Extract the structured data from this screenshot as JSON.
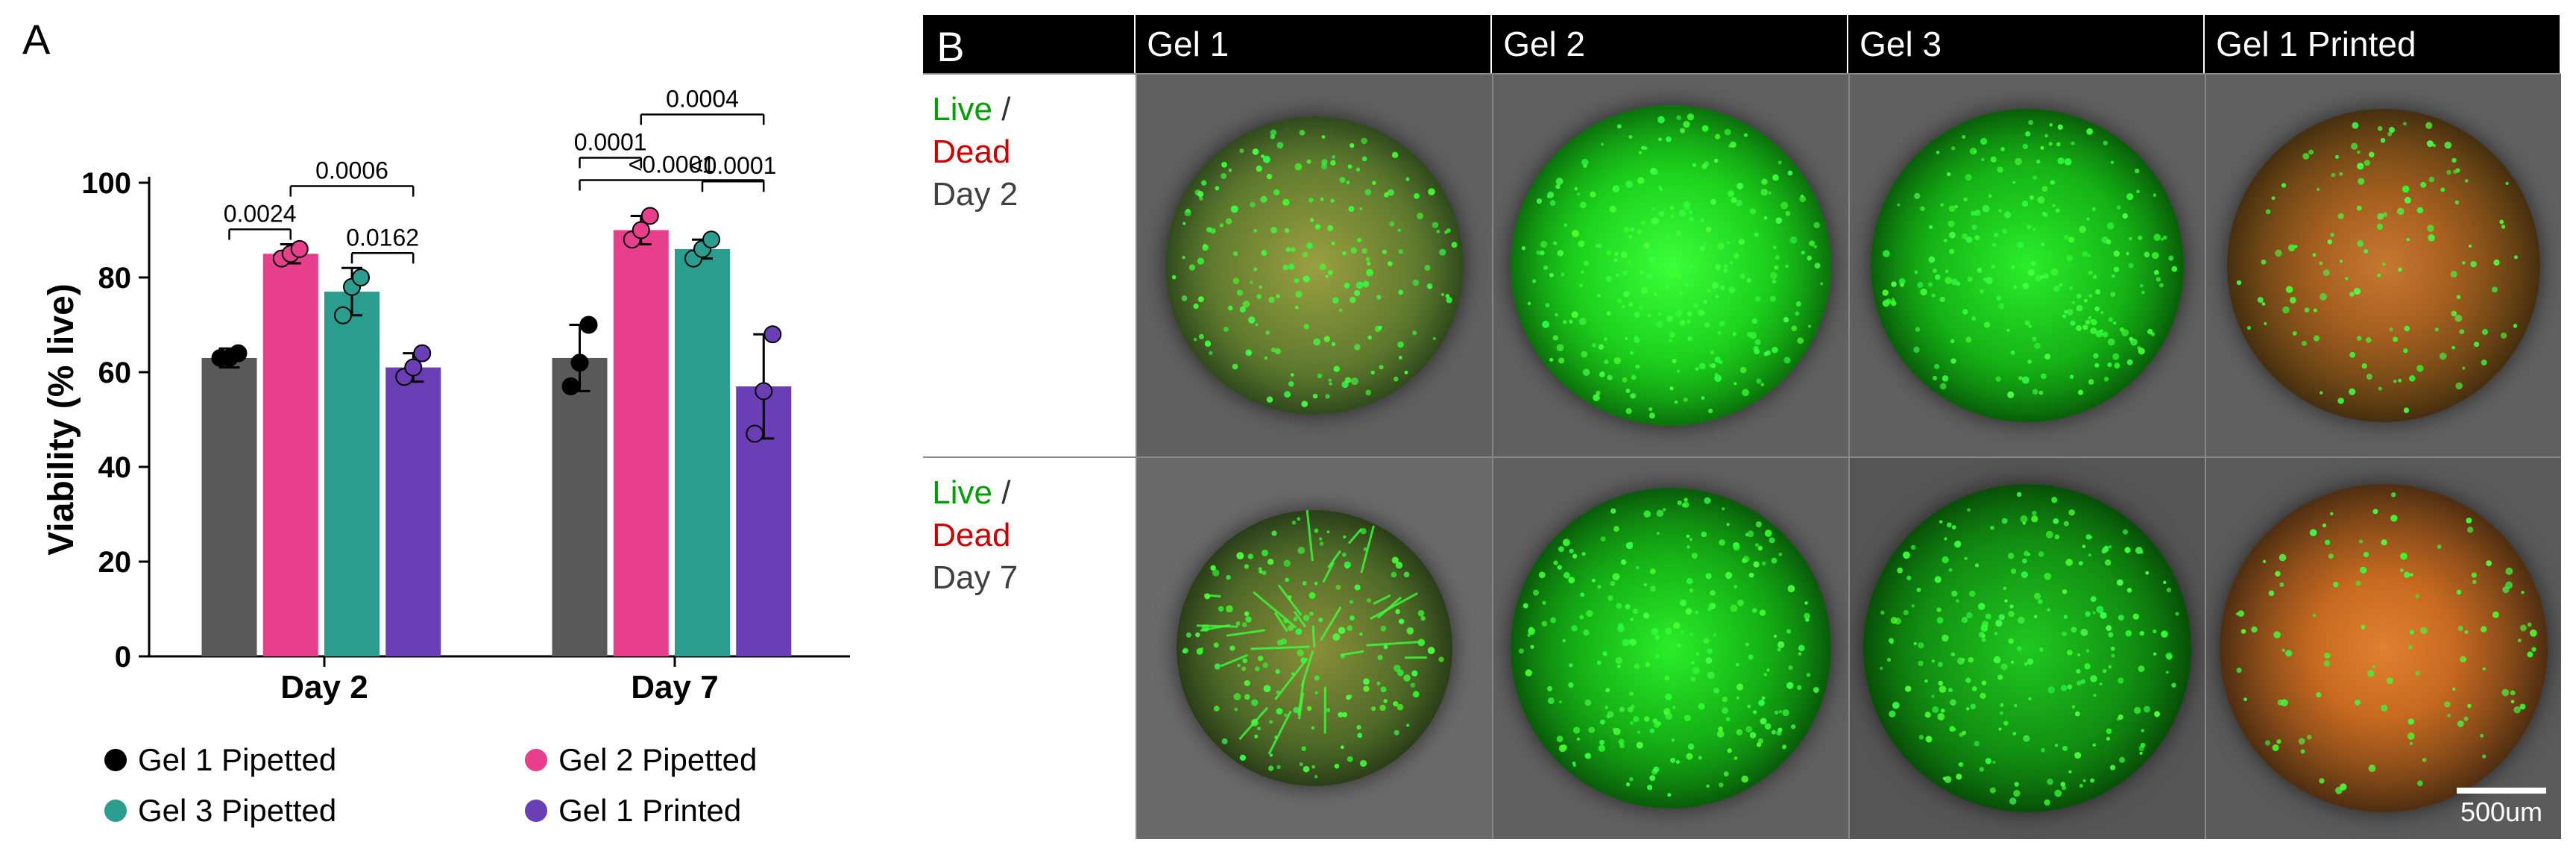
{
  "panel_a": {
    "label": "A",
    "chart": {
      "type": "bar",
      "ylabel": "Viability (% live)",
      "ylim": [
        0,
        100
      ],
      "yticks": [
        0,
        20,
        40,
        60,
        80,
        100
      ],
      "label_fontsize": 48,
      "tick_fontsize": 40,
      "annotation_fontsize": 32,
      "categories": [
        "Day 2",
        "Day 7"
      ],
      "series": [
        {
          "name": "Gel 1 Pipetted",
          "color": "#595959",
          "marker_color": "#000000"
        },
        {
          "name": "Gel 2 Pipetted",
          "color": "#e83f8c",
          "marker_color": "#e83f8c"
        },
        {
          "name": "Gel 3 Pipetted",
          "color": "#2a9d8f",
          "marker_color": "#2a9d8f"
        },
        {
          "name": "Gel 1 Printed",
          "color": "#6a3fb5",
          "marker_color": "#6a3fb5"
        }
      ],
      "data": {
        "Day 2": {
          "values": [
            63,
            85,
            77,
            61
          ],
          "errors": [
            2,
            2,
            5,
            3
          ],
          "points": [
            [
              63,
              63,
              64
            ],
            [
              84,
              85,
              86
            ],
            [
              72,
              78,
              80
            ],
            [
              59,
              61,
              64
            ]
          ]
        },
        "Day 7": {
          "values": [
            63,
            90,
            86,
            57
          ],
          "errors": [
            7,
            3,
            2,
            11
          ],
          "points": [
            [
              57,
              62,
              70
            ],
            [
              88,
              90,
              93
            ],
            [
              84,
              86,
              88
            ],
            [
              47,
              56,
              68
            ]
          ]
        }
      },
      "annotations": {
        "Day 2": [
          {
            "from": 0,
            "to": 1,
            "label": "0.0024",
            "level": 1
          },
          {
            "from": 2,
            "to": 3,
            "label": "0.0162",
            "level": 1
          },
          {
            "from": 1,
            "to": 3,
            "label": "0.0006",
            "level": 2
          }
        ],
        "Day 7": [
          {
            "from": 0,
            "to": 1,
            "label": "0.0001",
            "level": 2
          },
          {
            "from": 2,
            "to": 3,
            "label": "<0.0001",
            "level": 2
          },
          {
            "from": 1,
            "to": 3,
            "label": "0.0004",
            "level": 3
          },
          {
            "from": 0,
            "to": 3,
            "label": "<0.0001",
            "level": 4
          }
        ]
      },
      "bar_width": 0.8,
      "background_color": "#ffffff",
      "axis_color": "#000000"
    },
    "legend_items": [
      {
        "label": "Gel 1 Pipetted",
        "color": "#000000"
      },
      {
        "label": "Gel 2 Pipetted",
        "color": "#e83f8c"
      },
      {
        "label": "Gel 3 Pipetted",
        "color": "#2a9d8f"
      },
      {
        "label": "Gel 1 Printed",
        "color": "#6a3fb5"
      }
    ]
  },
  "panel_b": {
    "label": "B",
    "columns": [
      "Gel 1",
      "Gel 2",
      "Gel 3",
      "Gel 1 Printed"
    ],
    "rows": [
      {
        "live": "Live",
        "slash": " / ",
        "dead": "Dead",
        "day": "Day 2"
      },
      {
        "live": "Live",
        "slash": " / ",
        "dead": "Dead",
        "day": "Day 7"
      }
    ],
    "images": [
      [
        {
          "bg": "#606060",
          "fill": "radial-gradient(circle, #9aa040 0%, #5f7a2e 50%, #2e5020 80%)",
          "green_overlay": 0.8,
          "dots": 180,
          "size": 400
        },
        {
          "bg": "#606060",
          "fill": "radial-gradient(circle, #3aff3a 0%, #1ed41e 40%, #0a7a0a 80%)",
          "green_overlay": 0.95,
          "dots": 260,
          "size": 430
        },
        {
          "bg": "#606060",
          "fill": "radial-gradient(circle, #2aee2a 0%, #16b316 45%, #065506 85%)",
          "green_overlay": 0.9,
          "dots": 220,
          "size": 420
        },
        {
          "bg": "#606060",
          "fill": "radial-gradient(circle, #c77830 0%, #a86020 30%, #6a4515 60%, #3a2a10 90%)",
          "green_overlay": 0.35,
          "dots": 120,
          "size": 420
        }
      ],
      [
        {
          "bg": "#6a6a6a",
          "fill": "radial-gradient(circle, #8a9038 0%, #4f6a28 50%, #28401a 82%)",
          "green_overlay": 0.7,
          "dots": 150,
          "size": 370,
          "stringy": true
        },
        {
          "bg": "#606060",
          "fill": "radial-gradient(circle, #2aee2a 0%, #16b316 40%, #085508 85%)",
          "green_overlay": 0.92,
          "dots": 240,
          "size": 430
        },
        {
          "bg": "#555555",
          "fill": "radial-gradient(circle, #20c820 0%, #129012 45%, #054505 88%)",
          "green_overlay": 0.88,
          "dots": 230,
          "size": 440
        },
        {
          "bg": "#5a5a5a",
          "fill": "radial-gradient(circle, #e08030 0%, #c86a20 30%, #7a4518 60%, #3a2510 92%)",
          "green_overlay": 0.3,
          "dots": 100,
          "size": 440
        }
      ]
    ],
    "scale_bar": {
      "label": "500um",
      "color": "#ffffff"
    }
  }
}
